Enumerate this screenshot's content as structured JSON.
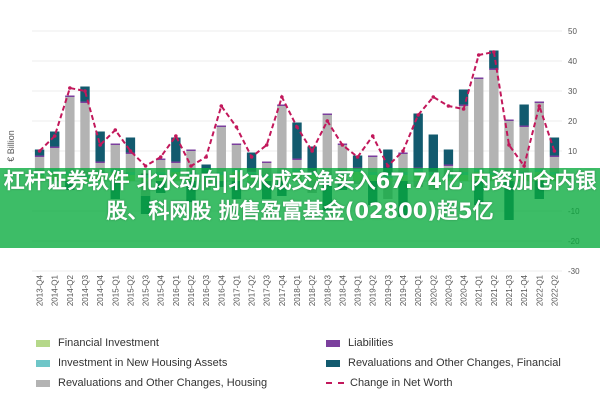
{
  "banner": {
    "text": "杠杆证券软件 北水动向|北水成交净买入67.74亿 内资加仓内银股、科网股 抛售盈富基金(02800)超5亿"
  },
  "chart_data": {
    "type": "bar",
    "title": "",
    "ylabel": "€ Billion",
    "ylim": [
      -30,
      50
    ],
    "yticks": [
      -30,
      -20,
      -10,
      0,
      10,
      20,
      30,
      40,
      50
    ],
    "categories": [
      "2013-Q4",
      "2014-Q1",
      "2014-Q2",
      "2014-Q3",
      "2014-Q4",
      "2015-Q1",
      "2015-Q2",
      "2015-Q3",
      "2015-Q4",
      "2016-Q1",
      "2016-Q2",
      "2016-Q3",
      "2016-Q4",
      "2017-Q1",
      "2017-Q2",
      "2017-Q3",
      "2017-Q4",
      "2018-Q1",
      "2018-Q2",
      "2018-Q3",
      "2018-Q4",
      "2019-Q1",
      "2019-Q2",
      "2019-Q3",
      "2019-Q4",
      "2020-Q1",
      "2020-Q2",
      "2020-Q3",
      "2020-Q4",
      "2021-Q1",
      "2021-Q2",
      "2021-Q3",
      "2021-Q4",
      "2022-Q1",
      "2022-Q2"
    ],
    "series": [
      {
        "name": "Financial Investment",
        "color": "#b5d88a",
        "values": [
          2,
          3,
          2,
          1,
          2,
          3,
          2,
          1,
          2,
          3,
          2,
          1,
          2,
          3,
          2,
          1,
          2,
          3,
          2,
          1,
          2,
          3,
          2,
          1,
          2,
          3,
          2,
          1,
          2,
          3,
          2,
          1,
          2,
          3,
          2
        ]
      },
      {
        "name": "Investment in New Housing Assets",
        "color": "#6fc6c8",
        "values": [
          1,
          1,
          1,
          1,
          1,
          1,
          1,
          1,
          1,
          1,
          1,
          1,
          1,
          1,
          1,
          1,
          1,
          1,
          1,
          1,
          1,
          1,
          1,
          1,
          1,
          1,
          1,
          1,
          1,
          1,
          1,
          1,
          1,
          1,
          1
        ]
      },
      {
        "name": "Revaluations and Other Changes, Housing",
        "color": "#b3b3b3",
        "values": [
          5,
          7,
          25,
          24,
          3,
          8,
          6,
          -5,
          4,
          2,
          7,
          -3,
          15,
          8,
          -2,
          4,
          22,
          3,
          -4,
          20,
          9,
          -1,
          5,
          -6,
          6,
          -2,
          -3,
          3,
          22,
          30,
          34,
          18,
          15,
          22,
          5
        ]
      },
      {
        "name": "Liabilities",
        "color": "#7b3f9d",
        "values": [
          0.5,
          0.5,
          0.5,
          0.5,
          0.5,
          0.5,
          0.5,
          0.5,
          0.5,
          0.5,
          0.5,
          0.5,
          0.5,
          0.5,
          0.5,
          0.5,
          0.5,
          0.5,
          0.5,
          0.5,
          0.5,
          0.5,
          0.5,
          0.5,
          0.5,
          0.5,
          0.5,
          0.5,
          0.5,
          0.5,
          0.5,
          0.5,
          0.5,
          0.5,
          0.5
        ]
      },
      {
        "name": "Revaluations and Other Changes, Financial",
        "color": "#125a6e",
        "values": [
          2,
          5,
          -3,
          5,
          10,
          -6,
          5,
          -6,
          -4,
          8,
          -7,
          3,
          -2,
          -6,
          6,
          -6,
          -5,
          12,
          8,
          -10,
          -3,
          4,
          -8,
          8,
          -12,
          18,
          12,
          5,
          5,
          -8,
          6,
          -13,
          7,
          -6,
          6
        ]
      }
    ],
    "line": {
      "name": "Change in Net Worth",
      "color": "#c2185b",
      "style": "dashed",
      "values": [
        10,
        15,
        31,
        30,
        12,
        17,
        10,
        5,
        8,
        15,
        5,
        8,
        25,
        18,
        8,
        12,
        28,
        18,
        10,
        20,
        12,
        8,
        15,
        5,
        10,
        22,
        28,
        25,
        24,
        42,
        43,
        12,
        5,
        25,
        10
      ]
    },
    "legend": {
      "items": [
        {
          "label": "Financial Investment",
          "kind": "bar",
          "color": "#b5d88a"
        },
        {
          "label": "Liabilities",
          "kind": "bar",
          "color": "#7b3f9d"
        },
        {
          "label": "Investment in New Housing Assets",
          "kind": "bar",
          "color": "#6fc6c8"
        },
        {
          "label": "Revaluations and Other Changes, Financial",
          "kind": "bar",
          "color": "#125a6e"
        },
        {
          "label": "Revaluations and Other Changes, Housing",
          "kind": "bar",
          "color": "#b3b3b3"
        },
        {
          "label": "Change in Net Worth",
          "kind": "line",
          "color": "#c2185b"
        }
      ]
    },
    "grid": true
  }
}
